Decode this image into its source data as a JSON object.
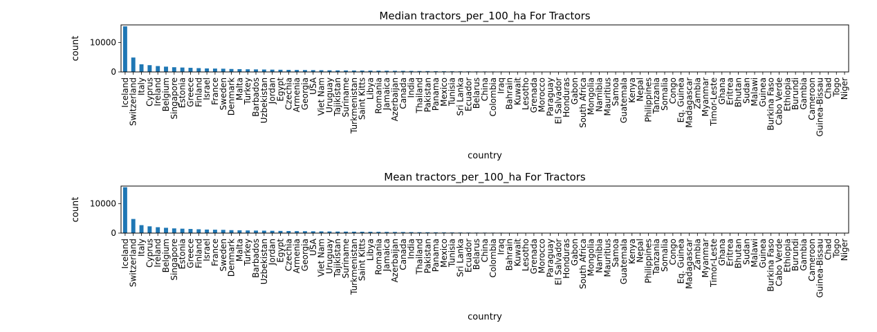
{
  "charts": [
    {
      "title": "Median tractors_per_100_ha For Tractors",
      "xlabel": "country",
      "ylabel": "count"
    },
    {
      "title": "Mean tractors_per_100_ha For Tractors",
      "xlabel": "country",
      "ylabel": "count"
    }
  ],
  "chart_data": [
    {
      "type": "bar",
      "title": "Median tractors_per_100_ha For Tractors",
      "xlabel": "country",
      "ylabel": "count",
      "ylim": [
        0,
        16000
      ],
      "yticks": [
        0,
        10000
      ],
      "bar_color": "#1f77b4",
      "categories": [
        "Iceland",
        "Switzerland",
        "Italy",
        "Cyprus",
        "Ireland",
        "Belgium",
        "Singapore",
        "Estonia",
        "Greece",
        "Finland",
        "Israel",
        "France",
        "Sweden",
        "Denmark",
        "Malta",
        "Turkey",
        "Barbados",
        "Uzbekistan",
        "Jordan",
        "Egypt",
        "Czechia",
        "Armenia",
        "Georgia",
        "USA",
        "Viet Nam",
        "Uruguay",
        "Tajikistan",
        "Suriname",
        "Turkmenistan",
        "Saint Kitts",
        "Libya",
        "Romania",
        "Jamaica",
        "Azerbaijan",
        "Canada",
        "India",
        "Thailand",
        "Pakistan",
        "Panama",
        "Mexico",
        "Tunisia",
        "Sri Lanka",
        "Ecuador",
        "Belarus",
        "China",
        "Colombia",
        "Iraq",
        "Bahrain",
        "Kuwait",
        "Lesotho",
        "Grenada",
        "Morocco",
        "Paraguay",
        "El Salvador",
        "Honduras",
        "Gabon",
        "South Africa",
        "Mongolia",
        "Namibia",
        "Mauritius",
        "Samoa",
        "Guatemala",
        "Kenya",
        "Nepal",
        "Philippines",
        "Tanzania",
        "Somalia",
        "Congo",
        "Eq. Guinea",
        "Madagascar",
        "Zambia",
        "Myanmar",
        "Timor-Leste",
        "Ghana",
        "Eritrea",
        "Bhutan",
        "Sudan",
        "Malawi",
        "Guinea",
        "Burkina Faso",
        "Cabo Verde",
        "Ethiopia",
        "Burundi",
        "Gambia",
        "Cameroon",
        "Guinea-Bissau",
        "Chad",
        "Togo",
        "Niger"
      ],
      "values": [
        15500,
        4900,
        2600,
        2300,
        2000,
        1800,
        1600,
        1500,
        1400,
        1300,
        1200,
        1150,
        1100,
        1000,
        950,
        900,
        860,
        820,
        780,
        740,
        700,
        670,
        640,
        610,
        580,
        550,
        520,
        500,
        480,
        460,
        440,
        420,
        400,
        380,
        360,
        330,
        300,
        280,
        260,
        240,
        220,
        200,
        185,
        170,
        160,
        150,
        140,
        130,
        120,
        110,
        100,
        92,
        85,
        78,
        72,
        66,
        60,
        55,
        50,
        45,
        40,
        36,
        32,
        29,
        26,
        23,
        20,
        18,
        16,
        14,
        12,
        10,
        9,
        8,
        7,
        6,
        5,
        4,
        3.5,
        3,
        2.5,
        2,
        1.5,
        1.2,
        1,
        0.8,
        0.6,
        0.4,
        0.2
      ]
    },
    {
      "type": "bar",
      "title": "Mean tractors_per_100_ha For Tractors",
      "xlabel": "country",
      "ylabel": "count",
      "ylim": [
        0,
        16000
      ],
      "yticks": [
        0,
        10000
      ],
      "bar_color": "#1f77b4",
      "categories": [
        "Iceland",
        "Switzerland",
        "Italy",
        "Cyprus",
        "Ireland",
        "Belgium",
        "Singapore",
        "Estonia",
        "Greece",
        "Finland",
        "Israel",
        "France",
        "Sweden",
        "Denmark",
        "Malta",
        "Turkey",
        "Barbados",
        "Uzbekistan",
        "Jordan",
        "Egypt",
        "Czechia",
        "Armenia",
        "Georgia",
        "USA",
        "Viet Nam",
        "Uruguay",
        "Tajikistan",
        "Suriname",
        "Turkmenistan",
        "Saint Kitts",
        "Libya",
        "Romania",
        "Jamaica",
        "Azerbaijan",
        "Canada",
        "India",
        "Thailand",
        "Pakistan",
        "Panama",
        "Mexico",
        "Tunisia",
        "Sri Lanka",
        "Ecuador",
        "Belarus",
        "China",
        "Colombia",
        "Iraq",
        "Bahrain",
        "Kuwait",
        "Lesotho",
        "Grenada",
        "Morocco",
        "Paraguay",
        "El Salvador",
        "Honduras",
        "Gabon",
        "South Africa",
        "Mongolia",
        "Namibia",
        "Mauritius",
        "Samoa",
        "Guatemala",
        "Kenya",
        "Nepal",
        "Philippines",
        "Tanzania",
        "Somalia",
        "Congo",
        "Eq. Guinea",
        "Madagascar",
        "Zambia",
        "Myanmar",
        "Timor-Leste",
        "Ghana",
        "Eritrea",
        "Bhutan",
        "Sudan",
        "Malawi",
        "Guinea",
        "Burkina Faso",
        "Cabo Verde",
        "Ethiopia",
        "Burundi",
        "Gambia",
        "Cameroon",
        "Guinea-Bissau",
        "Chad",
        "Togo",
        "Niger"
      ],
      "values": [
        15600,
        4800,
        2700,
        2300,
        2000,
        1800,
        1600,
        1500,
        1400,
        1300,
        1200,
        1150,
        1100,
        1000,
        950,
        900,
        860,
        820,
        780,
        740,
        700,
        670,
        640,
        610,
        580,
        550,
        520,
        500,
        480,
        460,
        440,
        420,
        400,
        380,
        360,
        330,
        300,
        280,
        260,
        240,
        220,
        200,
        185,
        170,
        160,
        150,
        140,
        130,
        120,
        110,
        100,
        92,
        85,
        78,
        72,
        66,
        60,
        55,
        50,
        45,
        40,
        36,
        32,
        29,
        26,
        23,
        20,
        18,
        16,
        14,
        12,
        10,
        9,
        8,
        7,
        6,
        5,
        4,
        3.5,
        3,
        2.5,
        2,
        1.5,
        1.2,
        1,
        0.8,
        0.6,
        0.4,
        0.2
      ]
    }
  ]
}
